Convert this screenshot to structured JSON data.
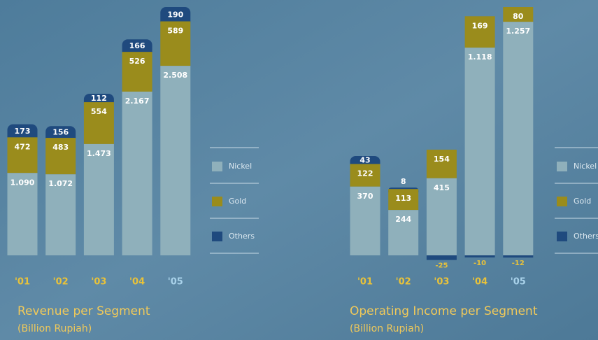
{
  "chart_data": [
    {
      "type": "stacked-bar",
      "title": "Revenue per Segment",
      "subtitle": "(Billion Rupiah)",
      "categories": [
        "'01",
        "'02",
        "'03",
        "'04",
        "'05"
      ],
      "series": [
        {
          "name": "Nickel",
          "color": "#8fb0bb",
          "values": [
            1090,
            1072,
            1473,
            2167,
            2508
          ],
          "value_labels": [
            "1.090",
            "1.072",
            "1.473",
            "2.167",
            "2.508"
          ]
        },
        {
          "name": "Gold",
          "color": "#9a8c1c",
          "values": [
            472,
            483,
            554,
            526,
            589
          ]
        },
        {
          "name": "Others",
          "color": "#1f4a7e",
          "values": [
            173,
            156,
            112,
            166,
            190
          ]
        }
      ]
    },
    {
      "type": "stacked-bar",
      "title": "Operating Income per Segment",
      "subtitle": "(Billion Rupiah)",
      "categories": [
        "'01",
        "'02",
        "'03",
        "'04",
        "'05"
      ],
      "series": [
        {
          "name": "Nickel",
          "color": "#8fb0bb",
          "values": [
            370,
            244,
            415,
            1118,
            1257
          ],
          "value_labels": [
            "370",
            "244",
            "415",
            "1.118",
            "1.257"
          ]
        },
        {
          "name": "Gold",
          "color": "#9a8c1c",
          "values": [
            122,
            113,
            154,
            169,
            80
          ]
        },
        {
          "name": "Others",
          "color": "#1f4a7e",
          "values": [
            43,
            8,
            -25,
            -10,
            -12
          ]
        }
      ]
    }
  ]
}
